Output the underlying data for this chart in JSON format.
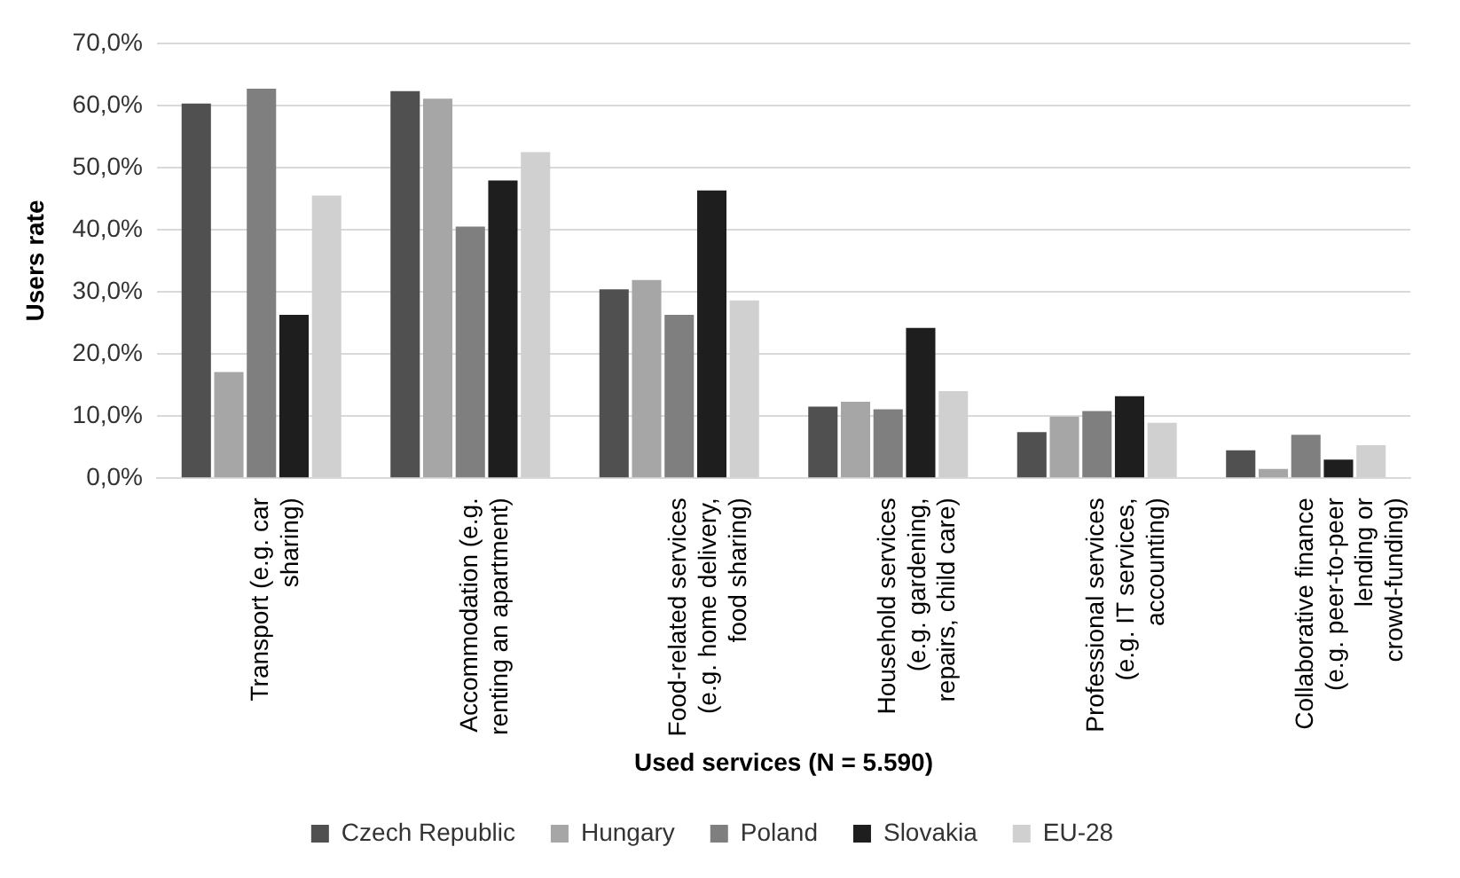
{
  "chart_data": {
    "type": "bar",
    "xlabel": "Used services (N = 5.590)",
    "ylabel": "Users rate",
    "categories": [
      "Transport (e.g. car sharing)",
      "Accommodation (e.g. renting an apartment)",
      "Food-related services (e.g. home delivery, food sharing)",
      "Household services (e.g. gardening, repairs, child care)",
      "Professional services (e.g. IT services, accounting)",
      "Collaborative finance (e.g. peer-to-peer lending or crowd-funding)"
    ],
    "series": [
      {
        "name": "Czech Republic",
        "color": "#505050",
        "values": [
          60.3,
          62.3,
          30.4,
          11.5,
          7.4,
          4.5
        ]
      },
      {
        "name": "Hungary",
        "color": "#a6a6a6",
        "values": [
          17.1,
          61.1,
          31.9,
          12.3,
          9.9,
          1.5
        ]
      },
      {
        "name": "Poland",
        "color": "#7f7f7f",
        "values": [
          62.7,
          40.5,
          26.3,
          11.1,
          10.8,
          7.0
        ]
      },
      {
        "name": "Slovakia",
        "color": "#1e1e1e",
        "values": [
          26.3,
          47.9,
          46.3,
          24.2,
          13.2,
          3.0
        ]
      },
      {
        "name": "EU-28",
        "color": "#d0d0d0",
        "values": [
          45.5,
          52.5,
          28.6,
          14.0,
          8.9,
          5.3
        ]
      }
    ],
    "ylim": [
      0,
      70
    ],
    "yticks": [
      {
        "value": 0,
        "label": "0,0%"
      },
      {
        "value": 10,
        "label": "10,0%"
      },
      {
        "value": 20,
        "label": "20,0%"
      },
      {
        "value": 30,
        "label": "30,0%"
      },
      {
        "value": 40,
        "label": "40,0%"
      },
      {
        "value": 50,
        "label": "50,0%"
      },
      {
        "value": 60,
        "label": "60,0%"
      },
      {
        "value": 70,
        "label": "70,0%"
      }
    ],
    "grid": "y",
    "legend": "bottom"
  }
}
